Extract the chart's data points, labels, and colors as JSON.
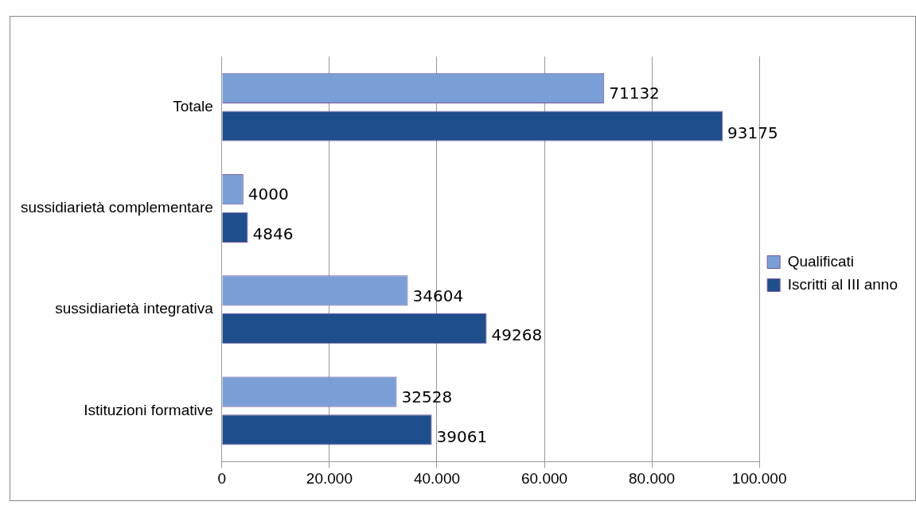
{
  "chart_data": {
    "type": "bar",
    "orientation": "horizontal",
    "categories": [
      "Totale",
      "sussidiarietà complementare",
      "sussidiarietà integrativa",
      "Istituzioni formative"
    ],
    "series": [
      {
        "name": "Qualificati",
        "color": "#7a9fd6",
        "values": [
          71132,
          4000,
          34604,
          32528
        ]
      },
      {
        "name": "Iscritti al III anno",
        "color": "#1f4e8c",
        "values": [
          93175,
          4846,
          49268,
          39061
        ]
      }
    ],
    "xlim": [
      0,
      100000
    ],
    "xticks": [
      0,
      {
        "value": 20000,
        "label": "20.000"
      },
      {
        "value": 40000,
        "label": "40.000"
      },
      {
        "value": 60000,
        "label": "60.000"
      },
      {
        "value": 80000,
        "label": "80.000"
      },
      {
        "value": 100000,
        "label": "100.000"
      }
    ],
    "grid": "x",
    "legend": "right",
    "data_labels": true
  }
}
